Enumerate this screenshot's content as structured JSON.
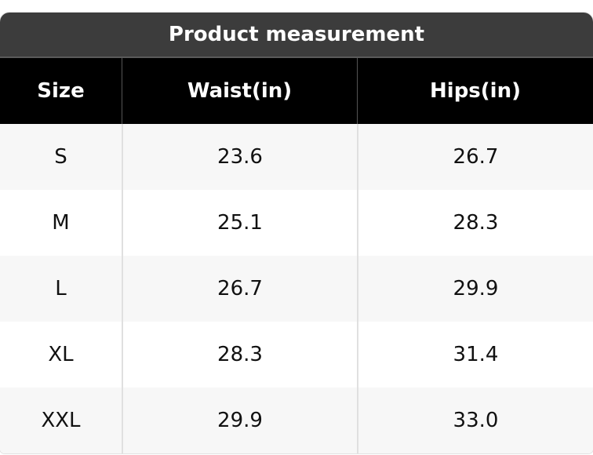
{
  "title": "Product measurement",
  "table": {
    "header": [
      "Size",
      "Waist(in)",
      "Hips(in)"
    ],
    "rows": [
      [
        "S",
        "23.6",
        "26.7"
      ],
      [
        "M",
        "25.1",
        "28.3"
      ],
      [
        "L",
        "26.7",
        "29.9"
      ],
      [
        "XL",
        "28.3",
        "31.4"
      ],
      [
        "XXL",
        "29.9",
        "33.0"
      ]
    ]
  }
}
